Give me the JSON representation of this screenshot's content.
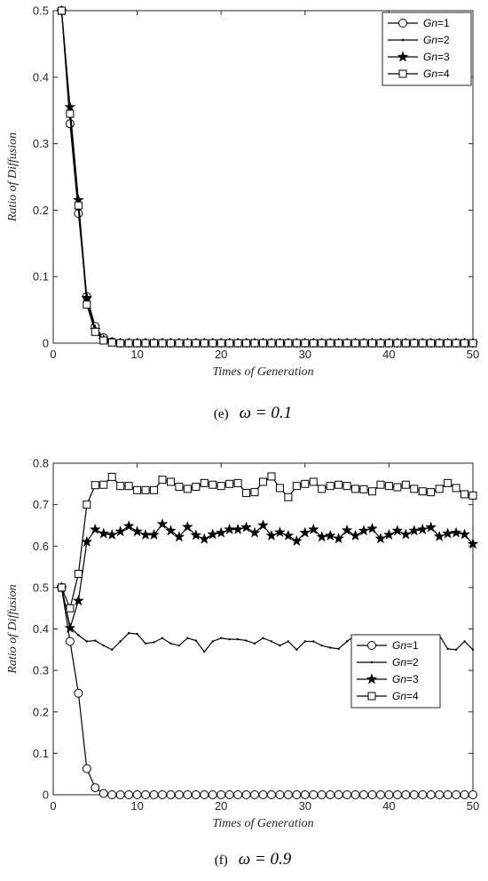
{
  "chart_data": [
    {
      "type": "line",
      "caption_letter": "(e)",
      "caption_formula": "ω = 0.1",
      "xlabel": "Times of Generation",
      "ylabel": "Ratio of Diffusion",
      "xlim": [
        0,
        50
      ],
      "ylim": [
        0,
        0.5
      ],
      "xticks": [
        "0",
        "10",
        "20",
        "30",
        "40",
        "50"
      ],
      "yticks": [
        "0",
        "0.1",
        "0.2",
        "0.3",
        "0.4",
        "0.5"
      ],
      "legend_position": "top-right",
      "grid": false,
      "x": [
        1,
        2,
        3,
        4,
        5,
        6,
        7,
        8,
        9,
        10,
        11,
        12,
        13,
        14,
        15,
        16,
        17,
        18,
        19,
        20,
        21,
        22,
        23,
        24,
        25,
        26,
        27,
        28,
        29,
        30,
        31,
        32,
        33,
        34,
        35,
        36,
        37,
        38,
        39,
        40,
        41,
        42,
        43,
        44,
        45,
        46,
        47,
        48,
        49,
        50
      ],
      "series": [
        {
          "name": "Gn=1",
          "marker": "circle",
          "values": [
            0.5,
            0.33,
            0.195,
            0.07,
            0.025,
            0.008,
            0.002,
            0,
            0,
            0,
            0,
            0,
            0,
            0,
            0,
            0,
            0,
            0,
            0,
            0,
            0,
            0,
            0,
            0,
            0,
            0,
            0,
            0,
            0,
            0,
            0,
            0,
            0,
            0,
            0,
            0,
            0,
            0,
            0,
            0,
            0,
            0,
            0,
            0,
            0,
            0,
            0,
            0,
            0,
            0
          ]
        },
        {
          "name": "Gn=2",
          "marker": "dot",
          "values": [
            0.5,
            0.34,
            0.2,
            0.065,
            0.02,
            0.006,
            0.001,
            0,
            0,
            0,
            0,
            0,
            0,
            0,
            0,
            0,
            0,
            0,
            0,
            0,
            0,
            0,
            0,
            0,
            0,
            0,
            0,
            0,
            0,
            0,
            0,
            0,
            0,
            0,
            0,
            0,
            0,
            0,
            0,
            0,
            0,
            0,
            0,
            0,
            0,
            0,
            0,
            0,
            0,
            0
          ]
        },
        {
          "name": "Gn=3",
          "marker": "star",
          "values": [
            0.5,
            0.355,
            0.215,
            0.068,
            0.02,
            0.005,
            0.001,
            0,
            0,
            0,
            0,
            0,
            0,
            0,
            0,
            0,
            0,
            0,
            0,
            0,
            0,
            0,
            0,
            0,
            0,
            0,
            0,
            0,
            0,
            0,
            0,
            0,
            0,
            0,
            0,
            0,
            0,
            0,
            0,
            0,
            0,
            0,
            0,
            0,
            0,
            0,
            0,
            0,
            0,
            0
          ]
        },
        {
          "name": "Gn=4",
          "marker": "square",
          "values": [
            0.5,
            0.345,
            0.207,
            0.058,
            0.017,
            0.004,
            0.001,
            0,
            0,
            0,
            0,
            0,
            0,
            0,
            0,
            0,
            0,
            0,
            0,
            0,
            0,
            0,
            0,
            0,
            0,
            0,
            0,
            0,
            0,
            0,
            0,
            0,
            0,
            0,
            0,
            0,
            0,
            0,
            0,
            0,
            0,
            0,
            0,
            0,
            0,
            0,
            0,
            0,
            0,
            0
          ]
        }
      ]
    },
    {
      "type": "line",
      "caption_letter": "(f)",
      "caption_formula": "ω = 0.9",
      "xlabel": "Times of Generation",
      "ylabel": "Ratio of Diffusion",
      "xlim": [
        0,
        50
      ],
      "ylim": [
        0,
        0.8
      ],
      "xticks": [
        "0",
        "10",
        "20",
        "30",
        "40",
        "50"
      ],
      "yticks": [
        "0",
        "0.1",
        "0.2",
        "0.3",
        "0.4",
        "0.5",
        "0.6",
        "0.7",
        "0.8"
      ],
      "legend_position": "middle-right",
      "grid": false,
      "x": [
        1,
        2,
        3,
        4,
        5,
        6,
        7,
        8,
        9,
        10,
        11,
        12,
        13,
        14,
        15,
        16,
        17,
        18,
        19,
        20,
        21,
        22,
        23,
        24,
        25,
        26,
        27,
        28,
        29,
        30,
        31,
        32,
        33,
        34,
        35,
        36,
        37,
        38,
        39,
        40,
        41,
        42,
        43,
        44,
        45,
        46,
        47,
        48,
        49,
        50
      ],
      "series": [
        {
          "name": "Gn=1",
          "marker": "circle",
          "values": [
            0.5,
            0.37,
            0.245,
            0.063,
            0.017,
            0.003,
            0,
            0,
            0,
            0,
            0,
            0,
            0,
            0,
            0,
            0,
            0,
            0,
            0,
            0,
            0,
            0,
            0,
            0,
            0,
            0,
            0,
            0,
            0,
            0,
            0,
            0,
            0,
            0,
            0,
            0,
            0,
            0,
            0,
            0,
            0,
            0,
            0,
            0,
            0,
            0,
            0,
            0,
            0,
            0
          ]
        },
        {
          "name": "Gn=2",
          "marker": "dot",
          "values": [
            0.5,
            0.405,
            0.385,
            0.37,
            0.372,
            0.36,
            0.35,
            0.37,
            0.39,
            0.388,
            0.365,
            0.368,
            0.378,
            0.365,
            0.36,
            0.378,
            0.372,
            0.345,
            0.37,
            0.378,
            0.375,
            0.375,
            0.372,
            0.365,
            0.378,
            0.37,
            0.36,
            0.37,
            0.35,
            0.37,
            0.37,
            0.36,
            0.355,
            0.352,
            0.37,
            0.385,
            0.352,
            0.365,
            0.37,
            0.35,
            0.352,
            0.372,
            0.358,
            0.375,
            0.378,
            0.385,
            0.352,
            0.35,
            0.37,
            0.35
          ]
        },
        {
          "name": "Gn=3",
          "marker": "star",
          "values": [
            0.5,
            0.402,
            0.468,
            0.61,
            0.64,
            0.63,
            0.627,
            0.635,
            0.648,
            0.635,
            0.627,
            0.627,
            0.653,
            0.637,
            0.622,
            0.646,
            0.626,
            0.617,
            0.628,
            0.632,
            0.64,
            0.64,
            0.645,
            0.632,
            0.65,
            0.625,
            0.633,
            0.625,
            0.612,
            0.632,
            0.64,
            0.622,
            0.625,
            0.618,
            0.638,
            0.625,
            0.637,
            0.642,
            0.618,
            0.627,
            0.637,
            0.628,
            0.637,
            0.64,
            0.645,
            0.623,
            0.63,
            0.632,
            0.628,
            0.605
          ]
        },
        {
          "name": "Gn=4",
          "marker": "square",
          "values": [
            0.5,
            0.45,
            0.533,
            0.7,
            0.747,
            0.748,
            0.767,
            0.745,
            0.745,
            0.735,
            0.735,
            0.735,
            0.76,
            0.755,
            0.743,
            0.738,
            0.743,
            0.752,
            0.748,
            0.745,
            0.75,
            0.752,
            0.728,
            0.73,
            0.755,
            0.768,
            0.74,
            0.718,
            0.745,
            0.75,
            0.755,
            0.738,
            0.745,
            0.748,
            0.745,
            0.738,
            0.737,
            0.732,
            0.748,
            0.745,
            0.742,
            0.748,
            0.738,
            0.732,
            0.73,
            0.738,
            0.752,
            0.74,
            0.725,
            0.722
          ]
        }
      ]
    }
  ]
}
